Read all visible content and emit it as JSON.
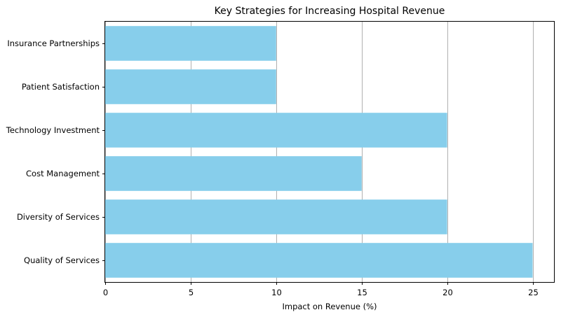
{
  "chart_data": {
    "type": "bar",
    "orientation": "horizontal",
    "title": "Key Strategies for Increasing Hospital Revenue",
    "xlabel": "Impact on Revenue (%)",
    "ylabel": "",
    "categories": [
      "Quality of Services",
      "Diversity of Services",
      "Cost Management",
      "Technology Investment",
      "Patient Satisfaction",
      "Insurance Partnerships"
    ],
    "values": [
      25,
      20,
      15,
      20,
      10,
      10
    ],
    "xlim": [
      0,
      26.25
    ],
    "xticks": [
      0,
      5,
      10,
      15,
      20,
      25
    ],
    "grid": "x",
    "bar_color": "#87CEEB",
    "grid_color": "#b0b0b0",
    "axis_color": "#000000"
  }
}
